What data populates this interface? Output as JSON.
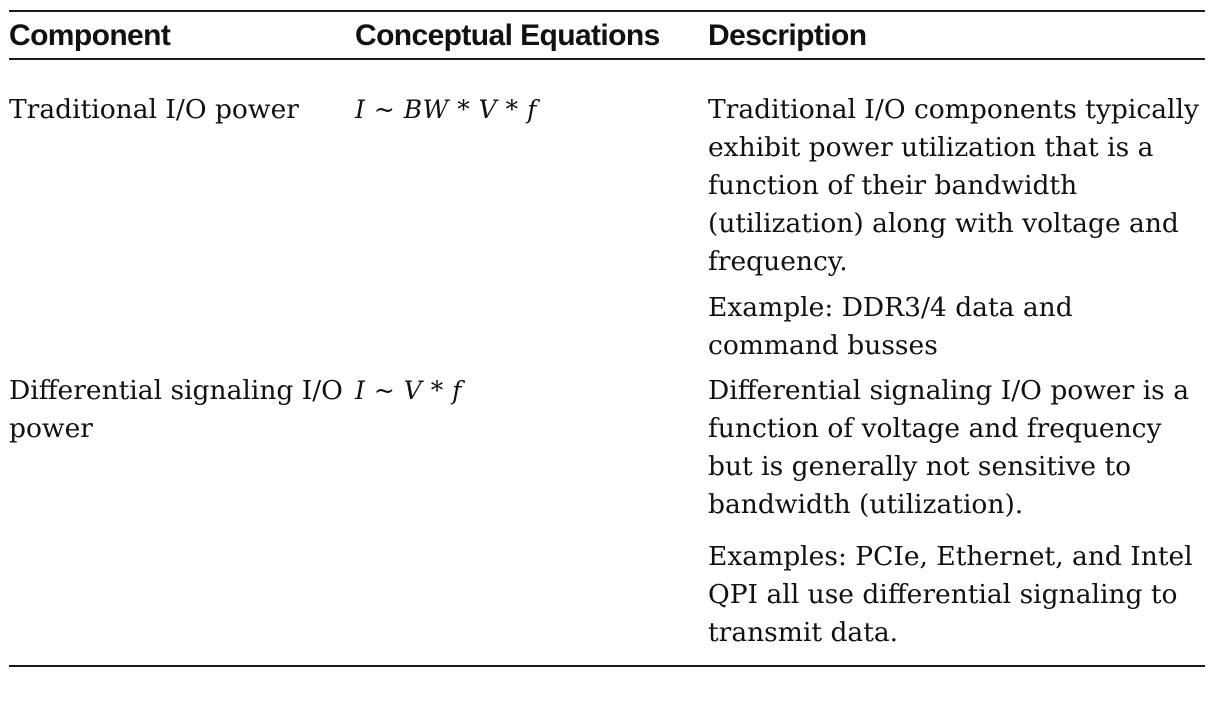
{
  "table": {
    "headers": [
      "Component",
      "Conceptual Equations",
      "Description"
    ],
    "rows": [
      {
        "component": "Traditional I/O power",
        "equation": "I ~ BW * V * f",
        "description": [
          "Traditional I/O components typically exhibit power utilization that is a function of their bandwidth (utilization) along with voltage and frequency.",
          "Example: DDR3/4 data and command busses"
        ]
      },
      {
        "component": "Differential signaling I/O power",
        "equation": "I ~ V * f",
        "description": [
          "Differential signaling I/O power is a function of voltage and frequency but is generally not sensitive to bandwidth (utilization).",
          "Examples: PCIe, Ethernet, and Intel QPI all use differential signaling to transmit data."
        ]
      }
    ]
  }
}
